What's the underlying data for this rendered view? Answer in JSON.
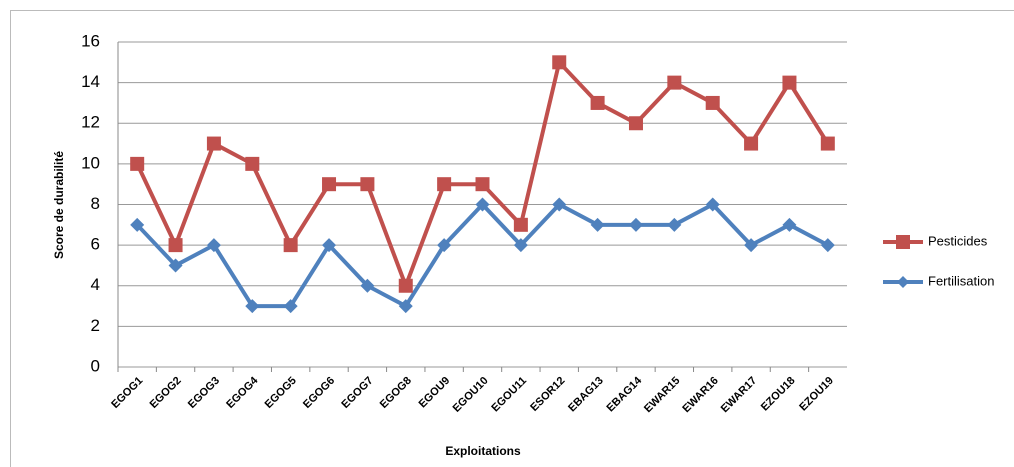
{
  "chart_data": {
    "type": "line",
    "x_label": "Exploitations",
    "y_label": "Score de durabilité",
    "categories": [
      "EGOG1",
      "EGOG2",
      "EGOG3",
      "EGOG4",
      "EGOG5",
      "EGOG6",
      "EGOG7",
      "EGOG8",
      "EGOU9",
      "EGOU10",
      "EGOU11",
      "ESOR12",
      "EBAG13",
      "EBAG14",
      "EWAR15",
      "EWAR16",
      "EWAR17",
      "EZOU18",
      "EZOU19"
    ],
    "series": [
      {
        "name": "Pesticides",
        "color": "#c0504d",
        "marker": "square",
        "values": [
          10,
          6,
          11,
          10,
          6,
          9,
          9,
          4,
          9,
          9,
          7,
          15,
          13,
          12,
          14,
          13,
          11,
          14,
          11
        ]
      },
      {
        "name": "Fertilisation",
        "color": "#4f81bd",
        "marker": "diamond",
        "values": [
          7,
          5,
          6,
          3,
          3,
          6,
          4,
          3,
          6,
          8,
          6,
          8,
          7,
          7,
          7,
          8,
          6,
          7,
          6
        ]
      }
    ],
    "ylim": [
      0,
      16
    ],
    "yticks": [
      0,
      2,
      4,
      6,
      8,
      10,
      12,
      14,
      16
    ],
    "grid": true,
    "legend": "right"
  }
}
